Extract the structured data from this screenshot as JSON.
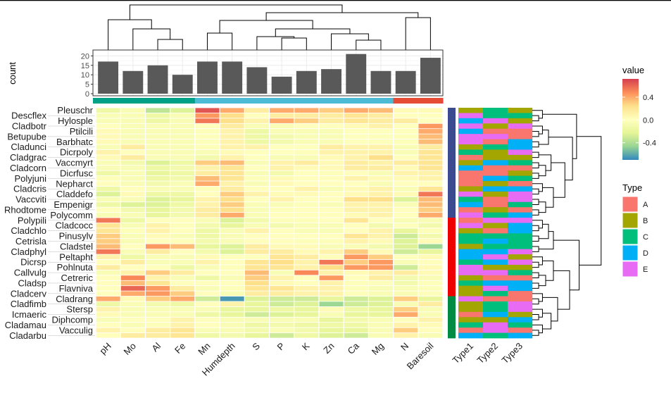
{
  "chart_data": {
    "type": "heatmap",
    "columns": [
      "pH",
      "Mo",
      "Al",
      "Fe",
      "Mn",
      "Humdepth",
      "S",
      "P",
      "K",
      "Zn",
      "Ca",
      "Mg",
      "N",
      "Baresoil"
    ],
    "column_groups": [
      1,
      1,
      1,
      1,
      2,
      2,
      2,
      2,
      2,
      2,
      2,
      2,
      3,
      3
    ],
    "column_group_colors": [
      "#00A087",
      "#4DBBD5",
      "#E64B35"
    ],
    "top_bar": {
      "ylabel": "count",
      "yticks": [
        0,
        5,
        10,
        15,
        20
      ],
      "ylim": [
        0,
        22
      ],
      "values": [
        17,
        12,
        15,
        10,
        17,
        17,
        14,
        9,
        12,
        13,
        21,
        12,
        12,
        19
      ],
      "grid": true,
      "bar_color": "#595959"
    },
    "rows": [
      "Pleuschr",
      "Descflex",
      "Hylosple",
      "Cladbotr",
      "Ptilcili",
      "Betupube",
      "Barbhatc",
      "Cladunci",
      "Dicrpoly",
      "Cladgrac",
      "Vaccmyrt",
      "Cladcorn",
      "Dicrfusc",
      "Polyjuni",
      "Nepharct",
      "Cladcris",
      "Claddefo",
      "Vaccviti",
      "Empenigr",
      "Rhodtome",
      "Polycomm",
      "Polypili",
      "Cladcocc",
      "Cladchlo",
      "Pinusylv",
      "Cetrisla",
      "Cladstel",
      "Cladphyl",
      "Peltapht",
      "Dicrsp",
      "Pohlnuta",
      "Callvulg",
      "Cetreric",
      "Cladsp",
      "Flavniva",
      "Cladcerv",
      "Cladrang",
      "Cladfimb",
      "Stersp",
      "Icmaeric",
      "Diphcomp",
      "Cladamau",
      "Vacculig",
      "Cladarbu"
    ],
    "row_groups": [
      1,
      1,
      1,
      1,
      1,
      1,
      1,
      1,
      1,
      1,
      1,
      1,
      1,
      1,
      1,
      1,
      1,
      1,
      1,
      1,
      1,
      2,
      2,
      2,
      2,
      2,
      2,
      2,
      2,
      2,
      2,
      2,
      2,
      2,
      2,
      2,
      3,
      3,
      3,
      3,
      3,
      3,
      3,
      3
    ],
    "row_group_colors": [
      "#3C4A8F",
      "#EE0000",
      "#008B45"
    ],
    "values": [
      [
        -0.15,
        -0.05,
        -0.35,
        -0.25,
        0.65,
        0.4,
        0.15,
        0.4,
        0.4,
        0.3,
        0.4,
        0.35,
        0.05,
        0.05
      ],
      [
        -0.05,
        -0.05,
        -0.15,
        -0.05,
        0.45,
        0.25,
        0.0,
        0.15,
        0.15,
        0.15,
        0.2,
        0.15,
        0.0,
        0.0
      ],
      [
        -0.05,
        -0.05,
        -0.15,
        -0.05,
        0.55,
        0.25,
        0.1,
        0.4,
        0.3,
        0.15,
        0.2,
        0.15,
        0.15,
        0.0
      ],
      [
        0.0,
        -0.05,
        -0.05,
        -0.05,
        0.0,
        0.15,
        -0.05,
        -0.05,
        0.0,
        0.0,
        0.05,
        0.1,
        0.0,
        0.45
      ],
      [
        0.05,
        -0.05,
        -0.05,
        -0.05,
        -0.02,
        0.1,
        -0.15,
        -0.05,
        -0.05,
        -0.05,
        0.0,
        0.0,
        0.0,
        0.4
      ],
      [
        0.05,
        -0.05,
        -0.05,
        -0.05,
        -0.02,
        0.1,
        -0.15,
        -0.1,
        -0.05,
        -0.05,
        0.0,
        -0.02,
        -0.02,
        0.35
      ],
      [
        0.05,
        -0.05,
        -0.05,
        -0.05,
        -0.02,
        0.1,
        -0.15,
        -0.1,
        -0.05,
        -0.05,
        0.0,
        -0.02,
        -0.02,
        0.35
      ],
      [
        -0.05,
        0.15,
        -0.05,
        -0.05,
        -0.02,
        0.1,
        0.1,
        0.0,
        0.0,
        0.15,
        0.1,
        0.1,
        -0.05,
        0.15
      ],
      [
        0.1,
        0.02,
        -0.05,
        -0.05,
        -0.05,
        0.05,
        0.0,
        0.0,
        -0.02,
        0.1,
        0.1,
        0.1,
        -0.05,
        0.2
      ],
      [
        0.05,
        0.15,
        -0.05,
        -0.05,
        -0.1,
        0.1,
        0.0,
        -0.05,
        -0.05,
        0.05,
        0.1,
        0.25,
        0.0,
        0.2
      ],
      [
        -0.05,
        -0.1,
        -0.25,
        -0.15,
        0.3,
        0.35,
        -0.05,
        0.1,
        0.15,
        0.05,
        0.15,
        0.1,
        0.15,
        0.2
      ],
      [
        -0.05,
        -0.05,
        -0.15,
        -0.1,
        0.1,
        0.2,
        0.0,
        0.1,
        0.05,
        0.05,
        0.15,
        0.15,
        0.05,
        0.2
      ],
      [
        -0.15,
        -0.05,
        -0.2,
        -0.15,
        0.15,
        0.2,
        -0.05,
        -0.1,
        0.0,
        -0.02,
        0.02,
        -0.05,
        0.1,
        0.1
      ],
      [
        -0.02,
        -0.05,
        -0.15,
        -0.1,
        0.35,
        0.2,
        -0.02,
        0.05,
        0.02,
        0.02,
        0.1,
        0.05,
        0.05,
        0.1
      ],
      [
        0.02,
        -0.05,
        -0.1,
        -0.05,
        0.4,
        0.1,
        -0.05,
        0.05,
        0.02,
        0.02,
        0.02,
        -0.05,
        0.02,
        0.02
      ],
      [
        -0.15,
        0.02,
        -0.05,
        -0.05,
        -0.02,
        0.15,
        0.02,
        0.02,
        0.1,
        -0.05,
        0.05,
        0.1,
        -0.05,
        0.2
      ],
      [
        -0.25,
        0.05,
        -0.15,
        -0.15,
        0.02,
        0.3,
        0.1,
        0.05,
        0.05,
        0.02,
        0.05,
        0.1,
        0.05,
        0.55
      ],
      [
        -0.05,
        -0.05,
        -0.25,
        -0.2,
        0.1,
        0.25,
        0.0,
        0.1,
        0.02,
        0.02,
        0.25,
        0.25,
        -0.25,
        0.35
      ],
      [
        -0.15,
        -0.25,
        -0.25,
        -0.15,
        0.1,
        0.3,
        -0.05,
        -0.05,
        -0.02,
        -0.05,
        0.1,
        0.1,
        -0.05,
        0.35
      ],
      [
        0.02,
        -0.1,
        -0.2,
        -0.1,
        0.15,
        0.25,
        -0.05,
        -0.02,
        0.02,
        0.02,
        0.1,
        0.1,
        0.02,
        0.3
      ],
      [
        -0.05,
        -0.05,
        -0.2,
        -0.1,
        0.15,
        0.4,
        -0.05,
        0.02,
        0.02,
        0.02,
        0.05,
        0.1,
        0.02,
        0.4
      ],
      [
        0.55,
        -0.15,
        0.02,
        0.02,
        -0.05,
        -0.25,
        -0.1,
        -0.02,
        -0.02,
        0.02,
        0.2,
        0.02,
        -0.05,
        -0.05
      ],
      [
        0.2,
        -0.05,
        0.1,
        -0.02,
        -0.1,
        -0.2,
        -0.05,
        -0.1,
        -0.05,
        -0.05,
        0.02,
        -0.1,
        0.0,
        -0.1
      ],
      [
        0.2,
        -0.02,
        0.1,
        0.02,
        -0.15,
        -0.05,
        0.1,
        0.02,
        -0.05,
        -0.05,
        0.02,
        0.1,
        -0.2,
        -0.02
      ],
      [
        0.3,
        -0.05,
        0.05,
        -0.05,
        -0.15,
        -0.05,
        0.02,
        0.02,
        0.02,
        0.02,
        0.2,
        0.1,
        -0.3,
        -0.1
      ],
      [
        0.3,
        -0.05,
        0.02,
        -0.02,
        -0.1,
        -0.05,
        0.02,
        0.02,
        -0.02,
        -0.02,
        0.1,
        0.05,
        -0.25,
        0.05
      ],
      [
        0.35,
        0.02,
        0.45,
        0.35,
        -0.2,
        -0.25,
        0.15,
        0.05,
        0.05,
        -0.05,
        -0.05,
        -0.1,
        -0.25,
        -0.45
      ],
      [
        0.55,
        -0.05,
        0.15,
        0.02,
        -0.1,
        -0.25,
        0.15,
        0.15,
        0.05,
        0.1,
        0.3,
        0.05,
        -0.3,
        -0.2
      ],
      [
        0.1,
        -0.15,
        -0.05,
        -0.05,
        0.05,
        0.0,
        0.0,
        0.2,
        0.15,
        -0.02,
        0.45,
        0.3,
        0.0,
        0.05
      ],
      [
        0.02,
        0.15,
        -0.05,
        -0.05,
        0.1,
        0.02,
        0.2,
        0.25,
        0.1,
        0.55,
        0.3,
        0.45,
        -0.05,
        0.02
      ],
      [
        0.15,
        0.02,
        0.0,
        -0.15,
        -0.05,
        -0.02,
        0.2,
        0.2,
        0.1,
        0.25,
        0.45,
        0.45,
        -0.3,
        0.05
      ],
      [
        -0.05,
        0.1,
        0.3,
        0.15,
        0.02,
        0.02,
        0.35,
        -0.05,
        0.5,
        0.1,
        0.05,
        0.1,
        0.15,
        0.05
      ],
      [
        0.02,
        0.5,
        0.1,
        -0.05,
        -0.15,
        -0.05,
        0.3,
        0.1,
        0.02,
        0.45,
        0.02,
        0.15,
        -0.1,
        -0.05
      ],
      [
        0.02,
        0.35,
        0.2,
        0.02,
        0.02,
        0.02,
        0.25,
        0.05,
        0.02,
        0.1,
        -0.02,
        -0.02,
        -0.1,
        -0.02
      ],
      [
        0.02,
        0.6,
        0.45,
        0.15,
        -0.05,
        -0.02,
        0.2,
        0.2,
        0.1,
        0.1,
        -0.02,
        -0.05,
        -0.05,
        -0.02
      ],
      [
        0.02,
        0.4,
        0.45,
        0.3,
        0.02,
        -0.05,
        0.15,
        0.15,
        0.1,
        0.1,
        -0.02,
        -0.05,
        -0.05,
        -0.02
      ],
      [
        0.4,
        0.05,
        0.3,
        0.4,
        -0.3,
        -0.65,
        -0.25,
        -0.3,
        -0.3,
        -0.2,
        -0.3,
        -0.25,
        0.3,
        -0.2
      ],
      [
        -0.15,
        -0.05,
        -0.1,
        -0.15,
        0.02,
        0.1,
        -0.2,
        -0.3,
        -0.25,
        -0.45,
        -0.3,
        -0.25,
        -0.05,
        0.15
      ],
      [
        0.1,
        -0.05,
        -0.05,
        -0.05,
        -0.05,
        -0.2,
        -0.2,
        -0.15,
        -0.2,
        0.05,
        -0.15,
        -0.2,
        0.3,
        -0.05
      ],
      [
        0.05,
        -0.05,
        -0.05,
        -0.05,
        -0.15,
        -0.2,
        -0.3,
        -0.25,
        -0.2,
        -0.05,
        -0.2,
        -0.2,
        0.4,
        -0.05
      ],
      [
        -0.05,
        0.02,
        0.02,
        0.1,
        0.02,
        -0.05,
        -0.05,
        -0.05,
        -0.05,
        -0.2,
        -0.1,
        -0.05,
        0.02,
        0.1
      ],
      [
        0.02,
        -0.05,
        -0.02,
        0.1,
        0.02,
        -0.05,
        -0.15,
        -0.1,
        -0.15,
        -0.15,
        -0.15,
        -0.05,
        0.1,
        0.05
      ],
      [
        0.1,
        0.02,
        0.15,
        0.2,
        -0.05,
        -0.05,
        -0.1,
        -0.05,
        -0.1,
        -0.2,
        -0.2,
        -0.05,
        0.3,
        0.02
      ],
      [
        0.02,
        0.15,
        0.15,
        0.2,
        -0.15,
        -0.1,
        -0.2,
        -0.3,
        -0.15,
        -0.25,
        -0.3,
        -0.05,
        0.1,
        -0.05
      ]
    ],
    "annotation_columns": [
      "Type1",
      "Type2",
      "Type3"
    ],
    "annotations": [
      [
        "B",
        "C",
        "B"
      ],
      [
        "E",
        "C",
        "C"
      ],
      [
        "D",
        "E",
        "B"
      ],
      [
        "E",
        "B",
        "E"
      ],
      [
        "D",
        "A",
        "A"
      ],
      [
        "E",
        "E",
        "A"
      ],
      [
        "E",
        "A",
        "D"
      ],
      [
        "B",
        "C",
        "D"
      ],
      [
        "C",
        "B",
        "E"
      ],
      [
        "A",
        "B",
        "B"
      ],
      [
        "B",
        "D",
        "C"
      ],
      [
        "D",
        "A",
        "A"
      ],
      [
        "A",
        "A",
        "B"
      ],
      [
        "A",
        "D",
        "C"
      ],
      [
        "A",
        "B",
        "A"
      ],
      [
        "B",
        "D",
        "D"
      ],
      [
        "E",
        "B",
        "E"
      ],
      [
        "C",
        "A",
        "E"
      ],
      [
        "D",
        "A",
        "C"
      ],
      [
        "A",
        "B",
        "A"
      ],
      [
        "E",
        "C",
        "D"
      ],
      [
        "A",
        "E",
        "E"
      ],
      [
        "E",
        "B",
        "D"
      ],
      [
        "B",
        "A",
        "D"
      ],
      [
        "C",
        "C",
        "C"
      ],
      [
        "C",
        "D",
        "C"
      ],
      [
        "B",
        "C",
        "C"
      ],
      [
        "D",
        "D",
        "E"
      ],
      [
        "D",
        "E",
        "B"
      ],
      [
        "C",
        "D",
        "E"
      ],
      [
        "E",
        "B",
        "B"
      ],
      [
        "E",
        "E",
        "C"
      ],
      [
        "B",
        "A",
        "A"
      ],
      [
        "C",
        "D",
        "D"
      ],
      [
        "B",
        "E",
        "D"
      ],
      [
        "B",
        "C",
        "A"
      ],
      [
        "E",
        "A",
        "A"
      ],
      [
        "B",
        "C",
        "E"
      ],
      [
        "B",
        "C",
        "E"
      ],
      [
        "A",
        "D",
        "B"
      ],
      [
        "B",
        "B",
        "D"
      ],
      [
        "C",
        "E",
        "C"
      ],
      [
        "A",
        "E",
        "A"
      ],
      [
        "D",
        "C",
        "D"
      ]
    ],
    "value_legend": {
      "title": "value",
      "ticks": [
        0.4,
        0.0,
        -0.4
      ],
      "tick_labels": [
        "0.4",
        "0.0",
        "-0.4"
      ],
      "range": [
        -0.7,
        0.72
      ],
      "palette": [
        "#3288bd",
        "#99d594",
        "#e6f598",
        "#ffffbf",
        "#fee08b",
        "#fc8d59",
        "#d53e4f"
      ]
    },
    "type_legend": {
      "title": "Type",
      "levels": [
        "A",
        "B",
        "C",
        "D",
        "E"
      ],
      "colors": {
        "A": "#F8766D",
        "B": "#A3A500",
        "C": "#00BF7D",
        "D": "#00B0F6",
        "E": "#E76BF3"
      }
    }
  }
}
